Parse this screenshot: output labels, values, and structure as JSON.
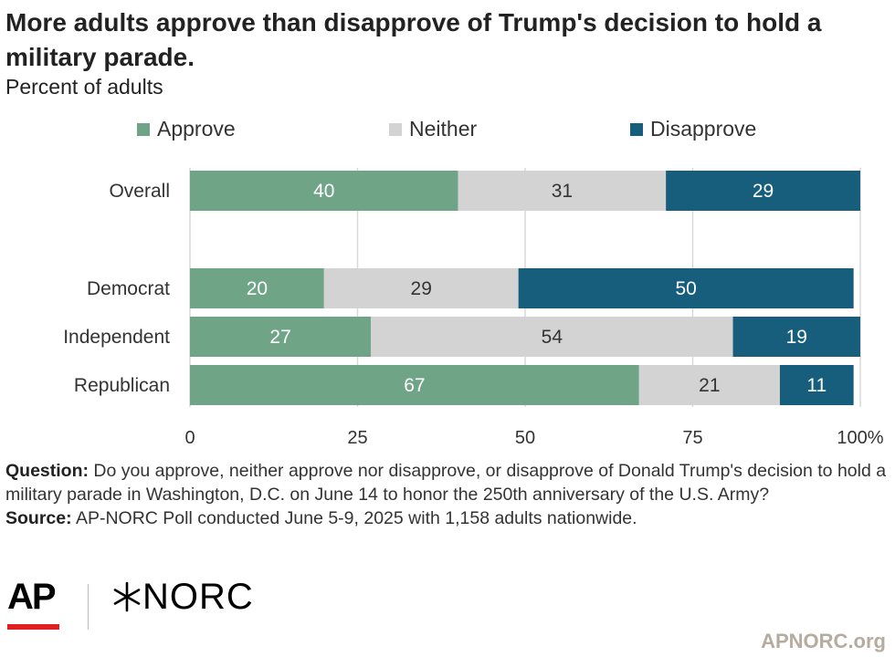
{
  "header": {
    "title": "More adults approve than disapprove of Trump's decision to hold a military parade.",
    "subtitle": "Percent of adults"
  },
  "colors": {
    "approve": "#70a487",
    "neither": "#d3d3d3",
    "disapprove": "#175e7c",
    "grid": "#d9d9d9",
    "url": "#b5ab9e",
    "ap_bar": "#e02020"
  },
  "chart_data": {
    "type": "bar",
    "orientation": "horizontal",
    "stacked": true,
    "categories": [
      "Overall",
      "Democrat",
      "Independent",
      "Republican"
    ],
    "series": [
      {
        "name": "Approve",
        "values": [
          40,
          20,
          27,
          67
        ]
      },
      {
        "name": "Neither",
        "values": [
          31,
          29,
          54,
          21
        ]
      },
      {
        "name": "Disapprove",
        "values": [
          29,
          50,
          19,
          11
        ]
      }
    ],
    "xlim": [
      0,
      100
    ],
    "xticks": [
      "0",
      "25",
      "50",
      "75",
      "100%"
    ],
    "grid": true,
    "legend_position": "top"
  },
  "notes": {
    "question_label": "Question:",
    "question_text": " Do you approve, neither approve nor disapprove, or disapprove of Donald Trump's decision to hold a military parade in Washington, D.C. on June 14 to honor the 250th anniversary of the U.S. Army?",
    "source_label": "Source:",
    "source_text": " AP-NORC Poll conducted June 5-9, 2025 with 1,158 adults nationwide."
  },
  "logos": {
    "ap": "AP",
    "norc": "NORC"
  },
  "footer": {
    "url": "APNORC.org"
  }
}
